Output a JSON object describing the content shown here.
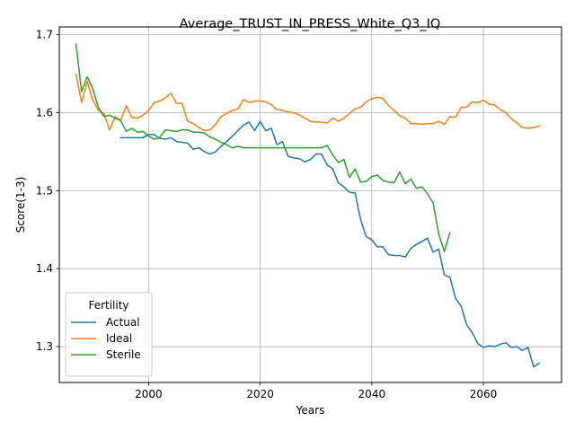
{
  "chart_data": {
    "type": "line",
    "title": "Average_TRUST_IN_PRESS_White_Q3_IQ",
    "xlabel": "Years",
    "ylabel": "Score(1-3)",
    "xlim": [
      1984,
      2074
    ],
    "ylim": [
      1.254,
      1.71
    ],
    "xticks": [
      2000,
      2020,
      2040,
      2060
    ],
    "yticks": [
      1.3,
      1.4,
      1.5,
      1.6,
      1.7
    ],
    "xtick_labels": [
      "2000",
      "2020",
      "2040",
      "2060"
    ],
    "ytick_labels": [
      "1.3",
      "1.4",
      "1.5",
      "1.6",
      "1.7"
    ],
    "grid": true,
    "legend": {
      "title": "Fertility",
      "position": "lower-left"
    },
    "series": [
      {
        "name": "Actual",
        "color": "#1f77b4",
        "x": [
          1995,
          1996,
          1997,
          1998,
          1999,
          2000,
          2001,
          2002,
          2003,
          2004,
          2005,
          2006,
          2007,
          2008,
          2009,
          2010,
          2011,
          2012,
          2013,
          2014,
          2015,
          2016,
          2017,
          2018,
          2019,
          2020,
          2021,
          2022,
          2023,
          2024,
          2025,
          2026,
          2027,
          2028,
          2029,
          2030,
          2031,
          2032,
          2033,
          2034,
          2035,
          2036,
          2037,
          2038,
          2039,
          2040,
          2041,
          2042,
          2043,
          2044,
          2045,
          2046,
          2047,
          2048,
          2049,
          2050,
          2051,
          2052,
          2053,
          2054,
          2055,
          2056,
          2057,
          2058,
          2059,
          2060,
          2061,
          2062,
          2063,
          2064,
          2065,
          2066,
          2067,
          2068,
          2069,
          2070
        ],
        "y": [
          1.568,
          1.568,
          1.568,
          1.568,
          1.568,
          1.572,
          1.572,
          1.567,
          1.566,
          1.568,
          1.563,
          1.562,
          1.561,
          1.553,
          1.555,
          1.55,
          1.547,
          1.55,
          1.557,
          1.563,
          1.57,
          1.577,
          1.584,
          1.588,
          1.577,
          1.589,
          1.577,
          1.58,
          1.559,
          1.563,
          1.544,
          1.542,
          1.541,
          1.537,
          1.54,
          1.547,
          1.547,
          1.533,
          1.528,
          1.51,
          1.505,
          1.498,
          1.497,
          1.463,
          1.441,
          1.437,
          1.428,
          1.428,
          1.418,
          1.417,
          1.417,
          1.415,
          1.426,
          1.431,
          1.435,
          1.439,
          1.421,
          1.425,
          1.392,
          1.389,
          1.362,
          1.352,
          1.328,
          1.318,
          1.304,
          1.299,
          1.301,
          1.3,
          1.303,
          1.305,
          1.299,
          1.3,
          1.295,
          1.299,
          1.274,
          1.279
        ]
      },
      {
        "name": "Ideal",
        "color": "#ff7f0e",
        "x": [
          1987,
          1988,
          1989,
          1990,
          1991,
          1992,
          1993,
          1994,
          1995,
          1996,
          1997,
          1998,
          1999,
          2000,
          2001,
          2002,
          2003,
          2004,
          2005,
          2006,
          2007,
          2008,
          2009,
          2010,
          2011,
          2012,
          2013,
          2014,
          2015,
          2016,
          2017,
          2018,
          2019,
          2020,
          2021,
          2022,
          2023,
          2024,
          2025,
          2026,
          2027,
          2028,
          2029,
          2030,
          2031,
          2032,
          2033,
          2034,
          2035,
          2036,
          2037,
          2038,
          2039,
          2040,
          2041,
          2042,
          2043,
          2044,
          2045,
          2046,
          2047,
          2048,
          2049,
          2050,
          2051,
          2052,
          2053,
          2054,
          2055,
          2056,
          2057,
          2058,
          2059,
          2060,
          2061,
          2062,
          2063,
          2064,
          2065,
          2066,
          2067,
          2068,
          2069,
          2070
        ],
        "y": [
          1.649,
          1.613,
          1.64,
          1.616,
          1.603,
          1.599,
          1.578,
          1.595,
          1.59,
          1.609,
          1.594,
          1.593,
          1.597,
          1.603,
          1.613,
          1.615,
          1.619,
          1.625,
          1.612,
          1.612,
          1.589,
          1.586,
          1.581,
          1.577,
          1.578,
          1.585,
          1.595,
          1.599,
          1.603,
          1.605,
          1.617,
          1.613,
          1.615,
          1.615,
          1.614,
          1.61,
          1.604,
          1.603,
          1.601,
          1.6,
          1.597,
          1.593,
          1.589,
          1.588,
          1.588,
          1.587,
          1.593,
          1.589,
          1.593,
          1.599,
          1.605,
          1.607,
          1.614,
          1.618,
          1.62,
          1.618,
          1.609,
          1.603,
          1.596,
          1.593,
          1.586,
          1.586,
          1.585,
          1.586,
          1.586,
          1.589,
          1.585,
          1.595,
          1.594,
          1.607,
          1.607,
          1.614,
          1.613,
          1.616,
          1.611,
          1.61,
          1.604,
          1.6,
          1.592,
          1.587,
          1.581,
          1.58,
          1.581,
          1.583
        ]
      },
      {
        "name": "Sterile",
        "color": "#2ca02c",
        "x": [
          1987,
          1988,
          1989,
          1990,
          1991,
          1992,
          1993,
          1994,
          1995,
          1996,
          1997,
          1998,
          1999,
          2000,
          2001,
          2002,
          2003,
          2004,
          2005,
          2006,
          2007,
          2008,
          2009,
          2010,
          2011,
          2012,
          2013,
          2014,
          2015,
          2016,
          2017,
          2018,
          2019,
          2020,
          2021,
          2022,
          2023,
          2024,
          2025,
          2026,
          2027,
          2028,
          2029,
          2030,
          2031,
          2032,
          2033,
          2034,
          2035,
          2036,
          2037,
          2038,
          2039,
          2040,
          2041,
          2042,
          2043,
          2044,
          2045,
          2046,
          2047,
          2048,
          2049,
          2050,
          2051,
          2052,
          2053,
          2054
        ],
        "y": [
          1.688,
          1.627,
          1.646,
          1.631,
          1.607,
          1.595,
          1.597,
          1.593,
          1.59,
          1.576,
          1.58,
          1.575,
          1.576,
          1.57,
          1.566,
          1.568,
          1.578,
          1.577,
          1.576,
          1.578,
          1.578,
          1.575,
          1.575,
          1.574,
          1.569,
          1.566,
          1.562,
          1.559,
          1.555,
          1.557,
          1.555,
          1.555,
          1.555,
          1.555,
          1.555,
          1.555,
          1.555,
          1.555,
          1.555,
          1.555,
          1.555,
          1.555,
          1.555,
          1.555,
          1.555,
          1.558,
          1.546,
          1.536,
          1.54,
          1.517,
          1.528,
          1.511,
          1.512,
          1.518,
          1.52,
          1.513,
          1.511,
          1.51,
          1.524,
          1.509,
          1.515,
          1.503,
          1.505,
          1.496,
          1.484,
          1.444,
          1.422,
          1.446
        ]
      }
    ]
  }
}
